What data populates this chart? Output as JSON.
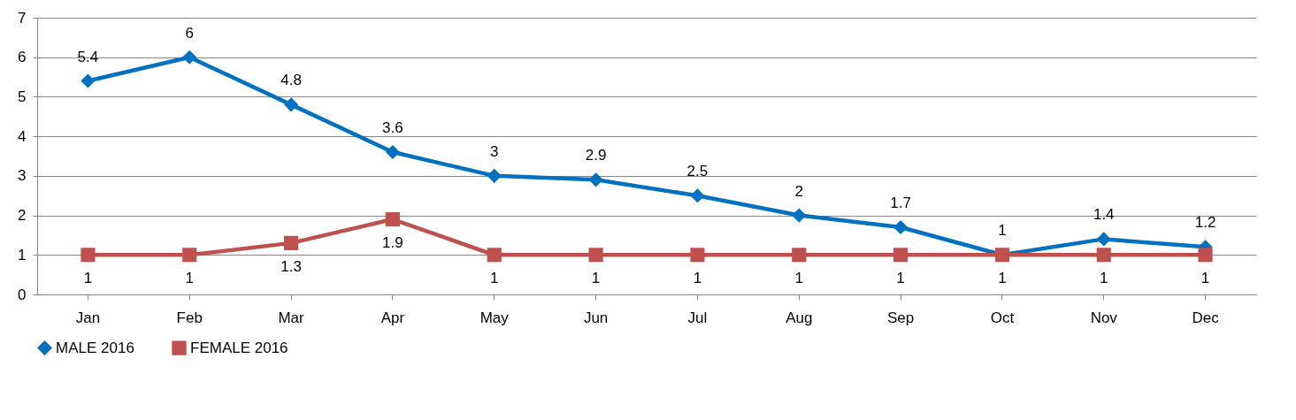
{
  "chart_data": {
    "type": "line",
    "categories": [
      "Jan",
      "Feb",
      "Mar",
      "Apr",
      "May",
      "Jun",
      "Jul",
      "Aug",
      "Sep",
      "Oct",
      "Nov",
      "Dec"
    ],
    "series": [
      {
        "name": "MALE 2016",
        "color": "#0070c0",
        "marker": "diamond",
        "values": [
          5.4,
          6,
          4.8,
          3.6,
          3,
          2.9,
          2.5,
          2,
          1.7,
          1,
          1.4,
          1.2
        ]
      },
      {
        "name": "FEMALE 2016",
        "color": "#c0504d",
        "marker": "square",
        "values": [
          1,
          1,
          1.3,
          1.9,
          1,
          1,
          1,
          1,
          1,
          1,
          1,
          1
        ]
      }
    ],
    "ylim": [
      0,
      7
    ],
    "yticks": [
      0,
      1,
      2,
      3,
      4,
      5,
      6,
      7
    ],
    "grid": "y",
    "legend": "bottom",
    "data_labels": true,
    "line_style": "solid"
  }
}
